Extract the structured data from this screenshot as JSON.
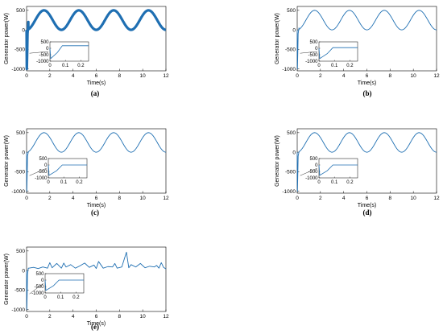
{
  "figure": {
    "panels": [
      {
        "label": "(a)",
        "chart_data": {
          "type": "line",
          "xlabel": "Time(s)",
          "ylabel": "Generator power(W)",
          "xlim": [
            0,
            12
          ],
          "ylim": [
            -1050,
            600
          ],
          "xticks": [
            0,
            2,
            4,
            6,
            8,
            10,
            12
          ],
          "yticks": [
            500,
            0,
            -500,
            -1000
          ],
          "series": [
            {
              "shape": "sine",
              "mean": 250,
              "amplitude": 250,
              "period": 3.0,
              "phase": -1.5707963,
              "band": 30
            }
          ],
          "startup": {
            "t_end": 0.15,
            "min": -1000,
            "settle": 200
          },
          "inset": {
            "xlim": [
              0,
              0.25
            ],
            "ylim": [
              -1000,
              500
            ],
            "xticks": [
              0,
              0.1,
              0.2
            ],
            "yticks": [
              500,
              0,
              -500,
              -1000
            ],
            "dip_min": -800,
            "settle": 200,
            "settle_t": 0.08
          }
        }
      },
      {
        "label": "(b)",
        "chart_data": {
          "type": "line",
          "xlabel": "Time(s)",
          "ylabel": "Generator power(W)",
          "xlim": [
            0,
            12
          ],
          "ylim": [
            -1050,
            600
          ],
          "xticks": [
            0,
            2,
            4,
            6,
            8,
            10,
            12
          ],
          "yticks": [
            500,
            0,
            -500,
            -1000
          ],
          "series": [
            {
              "shape": "sine",
              "mean": 250,
              "amplitude": 250,
              "period": 3.0,
              "phase": -1.5707963,
              "band": 0
            }
          ],
          "startup": {
            "t_end": 0.15,
            "min": -1000,
            "settle": 50
          },
          "inset": {
            "xlim": [
              0,
              0.25
            ],
            "ylim": [
              -1000,
              500
            ],
            "xticks": [
              0,
              0.1,
              0.2
            ],
            "yticks": [
              500,
              0,
              -500,
              -1000
            ],
            "dip_min": -800,
            "settle": 50,
            "settle_t": 0.09
          }
        }
      },
      {
        "label": "(c)",
        "chart_data": {
          "type": "line",
          "xlabel": "Time(s)",
          "ylabel": "Generator power(W)",
          "xlim": [
            0,
            12
          ],
          "ylim": [
            -1050,
            600
          ],
          "xticks": [
            0,
            2,
            4,
            6,
            8,
            10,
            12
          ],
          "yticks": [
            500,
            0,
            -500,
            -1000
          ],
          "series": [
            {
              "shape": "sine",
              "mean": 250,
              "amplitude": 250,
              "period": 3.0,
              "phase": -1.5707963,
              "band": 0
            }
          ],
          "startup": {
            "t_end": 0.15,
            "min": -1000,
            "settle": 0
          },
          "inset": {
            "xlim": [
              0,
              0.25
            ],
            "ylim": [
              -1000,
              500
            ],
            "xticks": [
              0,
              0.1,
              0.2
            ],
            "yticks": [
              500,
              0,
              -500,
              -1000
            ],
            "dip_min": -800,
            "settle": 0,
            "settle_t": 0.09
          }
        }
      },
      {
        "label": "(d)",
        "chart_data": {
          "type": "line",
          "xlabel": "Time(s)",
          "ylabel": "Generator power(W)",
          "xlim": [
            0,
            12
          ],
          "ylim": [
            -1050,
            600
          ],
          "xticks": [
            0,
            2,
            4,
            6,
            8,
            10,
            12
          ],
          "yticks": [
            500,
            0,
            -500,
            -1000
          ],
          "series": [
            {
              "shape": "sine",
              "mean": 250,
              "amplitude": 250,
              "period": 3.0,
              "phase": -1.5707963,
              "band": 0
            }
          ],
          "startup": {
            "t_end": 0.15,
            "min": -1000,
            "settle": 0
          },
          "inset": {
            "xlim": [
              0,
              0.25
            ],
            "ylim": [
              -1000,
              500
            ],
            "xticks": [
              0,
              0.1,
              0.2
            ],
            "yticks": [
              500,
              0,
              -500,
              -1000
            ],
            "dip_min": -800,
            "settle": 0,
            "settle_t": 0.09
          }
        }
      },
      {
        "label": "(e)",
        "chart_data": {
          "type": "line",
          "xlabel": "Time(s)",
          "ylabel": "Generator power(W)",
          "xlim": [
            0,
            12
          ],
          "ylim": [
            -1050,
            600
          ],
          "xticks": [
            0,
            2,
            4,
            6,
            8,
            10,
            12
          ],
          "yticks": [
            500,
            0,
            -500,
            -1000
          ],
          "series": [
            {
              "shape": "points",
              "t": [
                0.2,
                0.6,
                1.0,
                1.4,
                1.8,
                2.0,
                2.2,
                2.6,
                3.0,
                3.2,
                3.4,
                3.8,
                4.2,
                4.6,
                5.0,
                5.4,
                5.8,
                6.0,
                6.2,
                6.6,
                7.0,
                7.4,
                7.6,
                7.8,
                8.2,
                8.6,
                8.8,
                9.0,
                9.4,
                9.8,
                10.2,
                10.6,
                11.0,
                11.2,
                11.4,
                11.6,
                11.8,
                12.0
              ],
              "p": [
                60,
                80,
                50,
                90,
                60,
                200,
                70,
                180,
                60,
                190,
                90,
                150,
                60,
                120,
                190,
                80,
                140,
                50,
                230,
                60,
                100,
                90,
                180,
                60,
                90,
                470,
                70,
                150,
                90,
                180,
                70,
                110,
                90,
                130,
                60,
                200,
                80,
                40
              ]
            }
          ],
          "startup": {
            "t_end": 0.15,
            "min": -1000,
            "settle": 60
          },
          "inset": {
            "xlim": [
              0,
              0.25
            ],
            "ylim": [
              -1000,
              500
            ],
            "xticks": [
              0,
              0.1,
              0.2
            ],
            "yticks": [
              500,
              0,
              -500,
              -1000
            ],
            "dip_min": -800,
            "settle": 0,
            "settle_t": 0.09
          }
        }
      }
    ]
  },
  "colors": {
    "line": "#1f6fb2",
    "axis": "#000000"
  }
}
